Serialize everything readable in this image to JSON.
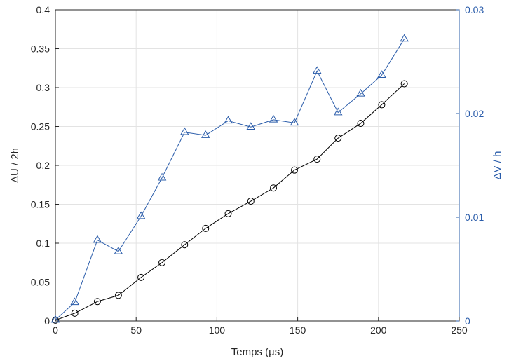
{
  "chart_data": {
    "type": "line",
    "xlabel": "Temps (µs)",
    "xlim": [
      0,
      250
    ],
    "xticks": [
      "0",
      "50",
      "100",
      "150",
      "200",
      "250"
    ],
    "y_left": {
      "label": "ΔU / 2h",
      "lim": [
        0,
        0.4
      ],
      "ticks": [
        "0",
        "0.05",
        "0.1",
        "0.15",
        "0.2",
        "0.25",
        "0.3",
        "0.35",
        "0.4"
      ]
    },
    "y_right": {
      "label": "ΔV / h",
      "lim": [
        0,
        0.03
      ],
      "ticks": [
        "0",
        "0.01",
        "0.02",
        "0.03"
      ]
    },
    "grid": true,
    "series": [
      {
        "axis": "left",
        "marker": "circle",
        "color": "#000000",
        "x": [
          0,
          12,
          26,
          39,
          53,
          66,
          80,
          93,
          107,
          121,
          135,
          148,
          162,
          175,
          189,
          202,
          216
        ],
        "y": [
          0.001,
          0.01,
          0.025,
          0.033,
          0.056,
          0.075,
          0.098,
          0.119,
          0.138,
          0.154,
          0.171,
          0.194,
          0.208,
          0.235,
          0.254,
          0.278,
          0.305
        ]
      },
      {
        "axis": "right",
        "marker": "triangle",
        "color": "#2a5caa",
        "x": [
          0,
          12,
          26,
          39,
          53,
          66,
          80,
          93,
          107,
          121,
          135,
          148,
          162,
          175,
          189,
          202,
          216
        ],
        "y": [
          0.0001,
          0.0018,
          0.0078,
          0.0067,
          0.0101,
          0.0138,
          0.0182,
          0.0179,
          0.0193,
          0.0187,
          0.0194,
          0.0191,
          0.0241,
          0.0201,
          0.0219,
          0.0237,
          0.0272
        ]
      }
    ]
  }
}
